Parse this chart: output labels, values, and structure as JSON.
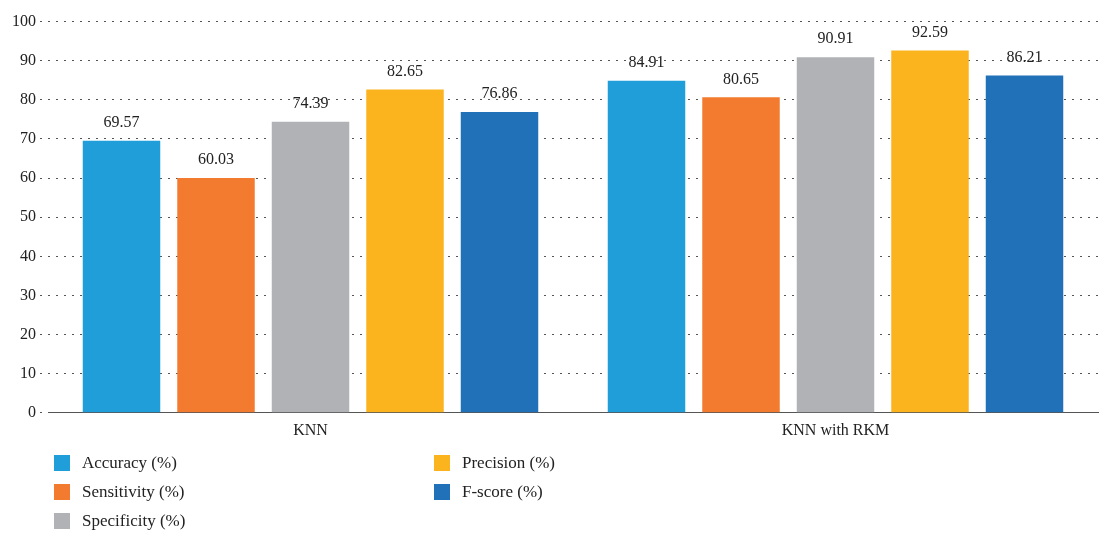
{
  "chart_data": {
    "type": "bar",
    "categories": [
      "KNN",
      "KNN with RKM"
    ],
    "series": [
      {
        "name": "Accuracy (%)",
        "color": "#1f9ed9",
        "values": [
          69.57,
          84.91
        ]
      },
      {
        "name": "Sensitivity (%)",
        "color": "#f37b2f",
        "values": [
          60.03,
          80.65
        ]
      },
      {
        "name": "Specificity (%)",
        "color": "#b1b2b6",
        "values": [
          74.39,
          90.91
        ]
      },
      {
        "name": "Precision (%)",
        "color": "#fbb41e",
        "values": [
          82.65,
          92.59
        ]
      },
      {
        "name": "F-score (%)",
        "color": "#2171b9",
        "values": [
          76.86,
          86.21
        ]
      }
    ],
    "ylim": [
      0,
      100
    ],
    "yticks": [
      0,
      10,
      20,
      30,
      40,
      50,
      60,
      70,
      80,
      90,
      100
    ],
    "grid": "y",
    "legend": "bottom",
    "data_labels": true
  }
}
